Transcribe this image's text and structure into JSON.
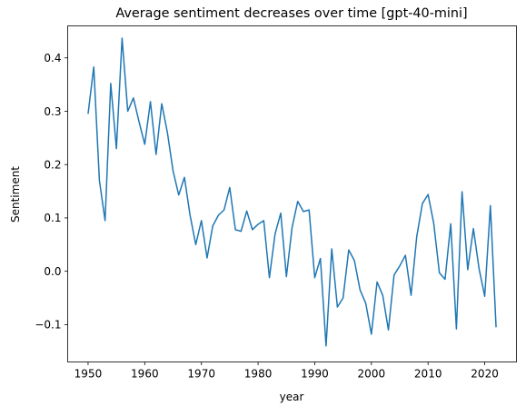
{
  "chart_data": {
    "type": "line",
    "title": "Average sentiment decreases over time [gpt-40-mini]",
    "xlabel": "year",
    "ylabel": "Sentiment",
    "xlim": [
      1946.4,
      2025.6
    ],
    "ylim": [
      -0.17,
      0.46
    ],
    "xticks": [
      1950,
      1960,
      1970,
      1980,
      1990,
      2000,
      2010,
      2020
    ],
    "xtick_labels": [
      "1950",
      "1960",
      "1970",
      "1980",
      "1990",
      "2000",
      "2010",
      "2020"
    ],
    "yticks": [
      -0.1,
      0.0,
      0.1,
      0.2,
      0.3,
      0.4
    ],
    "ytick_labels": [
      "−0.1",
      "0.0",
      "0.1",
      "0.2",
      "0.3",
      "0.4"
    ],
    "grid": false,
    "legend": false,
    "line_color": "#1f77b4",
    "series": [
      {
        "x": [
          1950,
          1951,
          1952,
          1953,
          1954,
          1955,
          1956,
          1957,
          1958,
          1959,
          1960,
          1961,
          1962,
          1963,
          1964,
          1965,
          1966,
          1967,
          1968,
          1969,
          1970,
          1971,
          1972,
          1973,
          1974,
          1975,
          1976,
          1977,
          1978,
          1979,
          1980,
          1981,
          1982,
          1983,
          1984,
          1985,
          1986,
          1987,
          1988,
          1989,
          1990,
          1991,
          1992,
          1993,
          1994,
          1995,
          1996,
          1997,
          1998,
          1999,
          2000,
          2001,
          2002,
          2003,
          2004,
          2005,
          2006,
          2007,
          2008,
          2009,
          2010,
          2011,
          2012,
          2013,
          2014,
          2015,
          2016,
          2017,
          2018,
          2019,
          2020,
          2021,
          2022
        ],
        "values": [
          0.295,
          0.383,
          0.17,
          0.095,
          0.352,
          0.23,
          0.437,
          0.3,
          0.325,
          0.28,
          0.238,
          0.318,
          0.219,
          0.314,
          0.26,
          0.188,
          0.143,
          0.176,
          0.105,
          0.05,
          0.095,
          0.025,
          0.085,
          0.105,
          0.115,
          0.157,
          0.078,
          0.075,
          0.113,
          0.078,
          0.088,
          0.095,
          -0.012,
          0.07,
          0.109,
          -0.01,
          0.082,
          0.131,
          0.112,
          0.115,
          -0.012,
          0.024,
          -0.14,
          0.042,
          -0.067,
          -0.05,
          0.04,
          0.02,
          -0.035,
          -0.06,
          -0.118,
          -0.02,
          -0.045,
          -0.11,
          -0.007,
          0.01,
          0.03,
          -0.045,
          0.065,
          0.127,
          0.144,
          0.09,
          -0.003,
          -0.015,
          0.089,
          -0.108,
          0.149,
          0.003,
          0.08,
          0.005,
          -0.047,
          0.123,
          -0.105
        ]
      }
    ]
  }
}
